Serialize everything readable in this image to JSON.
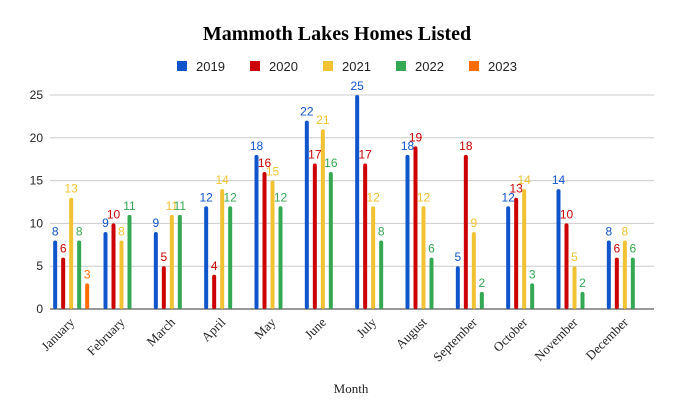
{
  "chart_data": {
    "type": "bar",
    "title": "Mammoth Lakes Homes Listed",
    "xlabel": "Month",
    "ylabel": "",
    "ylim": [
      0,
      25
    ],
    "yticks": [
      0,
      5,
      10,
      15,
      20,
      25
    ],
    "grid": true,
    "legend_position": "top",
    "categories": [
      "January",
      "February",
      "March",
      "April",
      "May",
      "June",
      "July",
      "August",
      "September",
      "October",
      "November",
      "December"
    ],
    "series": [
      {
        "name": "2019",
        "color": "#1155cc",
        "values": [
          8,
          9,
          9,
          12,
          18,
          22,
          25,
          18,
          5,
          12,
          14,
          8
        ]
      },
      {
        "name": "2020",
        "color": "#cc0000",
        "values": [
          6,
          10,
          5,
          4,
          16,
          17,
          17,
          19,
          18,
          13,
          10,
          6
        ]
      },
      {
        "name": "2021",
        "color": "#f1c232",
        "values": [
          13,
          8,
          11,
          14,
          15,
          21,
          12,
          12,
          9,
          14,
          5,
          8
        ]
      },
      {
        "name": "2022",
        "color": "#34a853",
        "values": [
          8,
          11,
          11,
          12,
          12,
          16,
          8,
          6,
          2,
          3,
          2,
          6
        ]
      },
      {
        "name": "2023",
        "color": "#ff6d01",
        "values": [
          3,
          null,
          null,
          null,
          null,
          null,
          null,
          null,
          null,
          null,
          null,
          null
        ]
      }
    ]
  }
}
